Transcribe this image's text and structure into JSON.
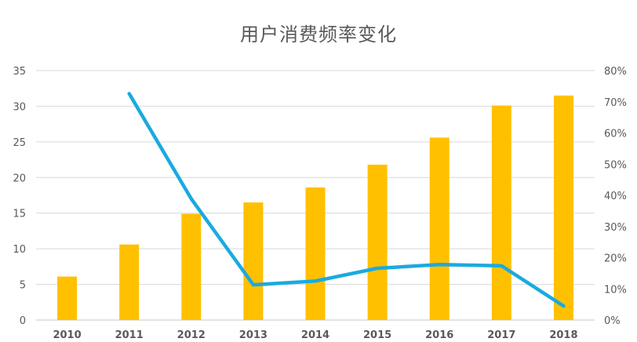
{
  "chart_data": {
    "type": "bar",
    "title": "用户消费频率变化",
    "categories": [
      "2010",
      "2011",
      "2012",
      "2013",
      "2014",
      "2015",
      "2016",
      "2017",
      "2018"
    ],
    "series": [
      {
        "type": "bar",
        "axis": "left",
        "color": "#FFC000",
        "values": [
          6.1,
          10.6,
          14.9,
          16.5,
          18.6,
          21.8,
          25.6,
          30.1,
          31.5
        ]
      },
      {
        "type": "line",
        "axis": "right",
        "color": "#1AAAE0",
        "values": [
          null,
          72.6,
          38.9,
          11.3,
          12.5,
          16.6,
          17.8,
          17.4,
          4.5
        ]
      }
    ],
    "y_left": {
      "min": 0,
      "max": 35,
      "ticks": [
        "0",
        "5",
        "10",
        "15",
        "20",
        "25",
        "30",
        "35"
      ]
    },
    "y_right": {
      "min": 0,
      "max": 80,
      "ticks": [
        "0%",
        "10%",
        "20%",
        "30%",
        "40%",
        "50%",
        "60%",
        "70%",
        "80%"
      ]
    },
    "grid": true,
    "legend": "none"
  }
}
